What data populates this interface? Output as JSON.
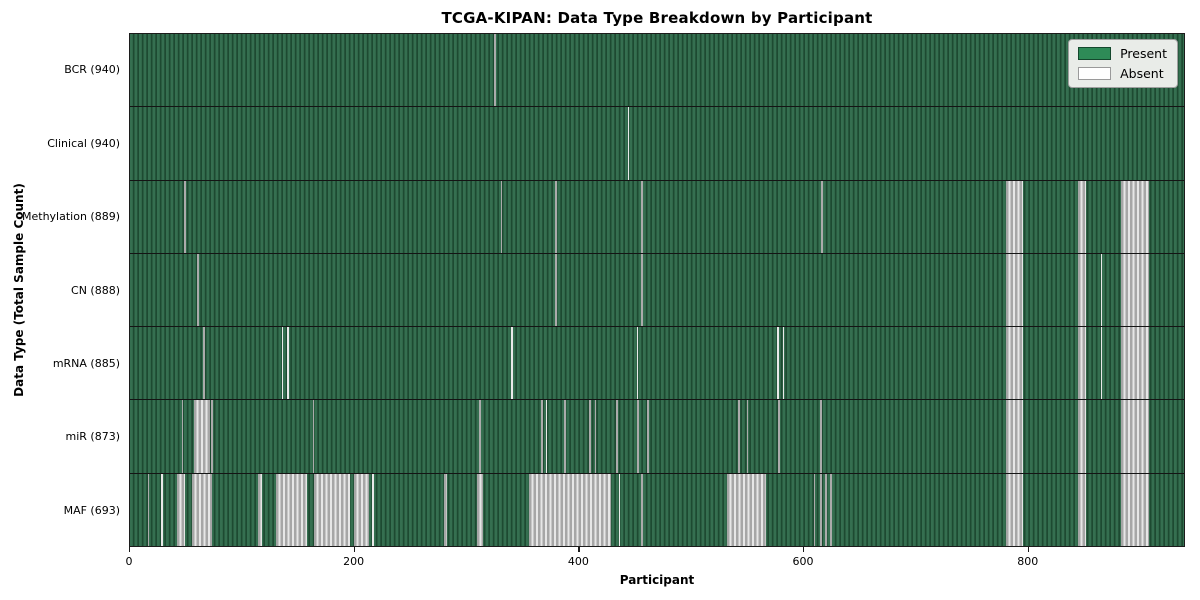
{
  "title": "TCGA-KIPAN: Data Type Breakdown by Participant",
  "x_axis": {
    "label": "Participant",
    "ticks": [
      0,
      200,
      400,
      600,
      800
    ]
  },
  "y_axis": {
    "label": "Data Type (Total Sample Count)"
  },
  "legend": [
    {
      "label": "Present",
      "color": "#2e8b57",
      "border": "#14482d"
    },
    {
      "label": "Absent",
      "color": "#ffffff",
      "border": "#9a9a9a"
    }
  ],
  "colors": {
    "present_fill": "#2e8b57",
    "present_stripe_dark": "#1d4a31",
    "absent_gray": "#ababab",
    "absent_white": "#e9e9e9",
    "spine": "#1c1c1c"
  },
  "chart_data": {
    "type": "heatmap",
    "x_range": [
      0,
      940
    ],
    "xlabel": "Participant",
    "ylabel": "Data Type (Total Sample Count)",
    "legend_position": "upper right",
    "rows": [
      {
        "label": "BCR (940)",
        "total_samples": 940,
        "absent": [
          [
            324,
            325.5,
            "g"
          ]
        ]
      },
      {
        "label": "Clinical (940)",
        "total_samples": 940,
        "absent": [
          [
            443,
            444.5,
            "w"
          ]
        ]
      },
      {
        "label": "Methylation (889)",
        "total_samples": 889,
        "absent": [
          [
            48,
            49.5,
            "g"
          ],
          [
            330,
            331.5,
            "g"
          ],
          [
            378,
            380,
            "g"
          ],
          [
            455,
            456.5,
            "g"
          ],
          [
            615,
            617,
            "g"
          ],
          [
            780,
            795,
            "s"
          ],
          [
            844,
            851,
            "s"
          ],
          [
            882,
            907,
            "s"
          ]
        ]
      },
      {
        "label": "CN (888)",
        "total_samples": 888,
        "absent": [
          [
            60,
            61.5,
            "g"
          ],
          [
            378,
            380,
            "g"
          ],
          [
            455,
            456.5,
            "g"
          ],
          [
            864,
            865.5,
            "w"
          ],
          [
            780,
            795,
            "s"
          ],
          [
            844,
            851,
            "s"
          ],
          [
            882,
            907,
            "s"
          ]
        ]
      },
      {
        "label": "mRNA (885)",
        "total_samples": 885,
        "absent": [
          [
            65,
            66.5,
            "g"
          ],
          [
            135,
            136.5,
            "w"
          ],
          [
            140,
            141.5,
            "w"
          ],
          [
            339,
            340.5,
            "w"
          ],
          [
            451,
            452.5,
            "w"
          ],
          [
            576,
            577.5,
            "w"
          ],
          [
            581,
            582.5,
            "w"
          ],
          [
            864,
            865.5,
            "w"
          ],
          [
            780,
            795,
            "s"
          ],
          [
            844,
            851,
            "s"
          ],
          [
            882,
            907,
            "s"
          ]
        ]
      },
      {
        "label": "miR (873)",
        "total_samples": 873,
        "absent": [
          [
            46,
            47.5,
            "g"
          ],
          [
            57,
            71,
            "s"
          ],
          [
            72.5,
            74,
            "g"
          ],
          [
            162.5,
            164,
            "g"
          ],
          [
            311,
            312.5,
            "g"
          ],
          [
            366,
            368,
            "g"
          ],
          [
            370,
            371.5,
            "w"
          ],
          [
            386.5,
            388,
            "g"
          ],
          [
            408.5,
            410,
            "g"
          ],
          [
            413.5,
            415,
            "g"
          ],
          [
            432.5,
            434,
            "g"
          ],
          [
            451.5,
            453,
            "g"
          ],
          [
            460.5,
            462,
            "g"
          ],
          [
            541.5,
            543,
            "g"
          ],
          [
            549,
            550.5,
            "g"
          ],
          [
            577,
            578.5,
            "g"
          ],
          [
            614.5,
            616,
            "g"
          ],
          [
            780,
            795,
            "s"
          ],
          [
            844,
            851,
            "s"
          ],
          [
            882,
            907,
            "s"
          ]
        ]
      },
      {
        "label": "MAF (693)",
        "total_samples": 693,
        "absent": [
          [
            16,
            17,
            "g"
          ],
          [
            27.5,
            29,
            "w"
          ],
          [
            42,
            49,
            "s"
          ],
          [
            55,
            73,
            "s"
          ],
          [
            113.5,
            117.5,
            "s"
          ],
          [
            130,
            157.5,
            "s"
          ],
          [
            164,
            196,
            "s"
          ],
          [
            199,
            212.5,
            "s"
          ],
          [
            215.5,
            217,
            "w"
          ],
          [
            279.5,
            282.5,
            "s"
          ],
          [
            309,
            314,
            "s"
          ],
          [
            355,
            428.5,
            "s"
          ],
          [
            435,
            436.5,
            "w"
          ],
          [
            454.5,
            456.5,
            "g"
          ],
          [
            531,
            566,
            "s"
          ],
          [
            608.5,
            610,
            "g"
          ],
          [
            614.5,
            616,
            "g"
          ],
          [
            619,
            620.5,
            "g"
          ],
          [
            623.5,
            625,
            "g"
          ],
          [
            780,
            795,
            "s"
          ],
          [
            844,
            851,
            "s"
          ],
          [
            882,
            907,
            "s"
          ]
        ]
      }
    ]
  }
}
